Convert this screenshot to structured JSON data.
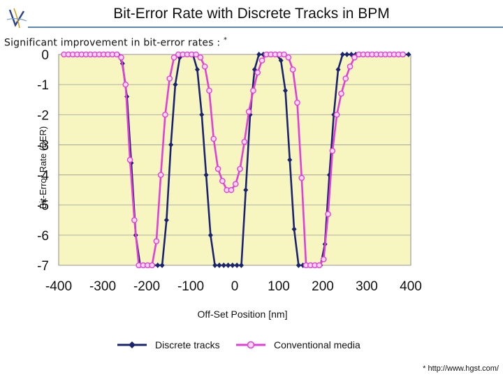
{
  "slide": {
    "title": "Bit-Error Rate with Discrete Tracks in BPM",
    "subtitle": "Significant improvement in bit-error rates :",
    "subtitle_marker": "*",
    "footnote": "* http://www.hgst.com/"
  },
  "colors": {
    "plot_bg": "#f7f5c0",
    "discrete": "#1a2370",
    "conventional": "#e23fd6",
    "conventional_marker_fill": "#ffd6f6",
    "grid": "#9a9a9a",
    "rule": "#5b86b8"
  },
  "chart_data": {
    "type": "line",
    "title": "",
    "xlabel": "Off-Set Position [nm]",
    "ylabel": "Bit-Error Rate (BER)",
    "xlim": [
      -400,
      400
    ],
    "ylim": [
      -7,
      0
    ],
    "xticks": [
      "-400",
      "-300",
      "-200",
      "-100",
      "0",
      "100",
      "200",
      "300",
      "400"
    ],
    "yticks": [
      "0",
      "-1",
      "-2",
      "-3",
      "-4",
      "-5",
      "-6",
      "-7"
    ],
    "grid": true,
    "legend_position": "bottom",
    "series": [
      {
        "name": "Discrete tracks",
        "marker": "diamond",
        "x": [
          -375,
          -365,
          -355,
          -345,
          -335,
          -325,
          -315,
          -305,
          -295,
          -285,
          -275,
          -265,
          -255,
          -245,
          -235,
          -225,
          -215,
          -205,
          -195,
          -185,
          -175,
          -165,
          -155,
          -145,
          -135,
          -125,
          -115,
          -105,
          -95,
          -85,
          -75,
          -65,
          -55,
          -45,
          -35,
          -25,
          -15,
          -5,
          5,
          15,
          25,
          35,
          45,
          55,
          65,
          75,
          85,
          95,
          105,
          115,
          125,
          135,
          145,
          155,
          165,
          175,
          185,
          195,
          205,
          215,
          225,
          235,
          245,
          255,
          265,
          275,
          285,
          295,
          305,
          315,
          325,
          335,
          345,
          355,
          365,
          375,
          385,
          395
        ],
        "y": [
          0,
          0,
          0,
          0,
          0,
          0,
          0,
          0,
          0,
          0,
          0,
          0,
          -0.3,
          -1.4,
          -3.6,
          -6.0,
          -7,
          -7,
          -7,
          -7,
          -7,
          -7,
          -5.5,
          -3.0,
          -1.0,
          -0.1,
          0,
          0,
          0,
          -0.5,
          -2.0,
          -4.0,
          -6.0,
          -7,
          -7,
          -7,
          -7,
          -7,
          -7,
          -7,
          -4.5,
          -2.0,
          -0.5,
          0,
          0,
          0,
          0,
          0,
          -0.2,
          -1.2,
          -3.5,
          -5.8,
          -7,
          -7,
          -7,
          -7,
          -7,
          -7,
          -6.3,
          -4.0,
          -2.0,
          -0.5,
          0,
          0,
          0,
          0,
          0,
          0,
          0,
          0,
          0,
          0,
          0,
          0,
          0,
          0,
          0,
          0
        ]
      },
      {
        "name": "Conventional media",
        "marker": "circle",
        "x": [
          -388,
          -378,
          -368,
          -358,
          -348,
          -338,
          -328,
          -318,
          -308,
          -298,
          -288,
          -278,
          -268,
          -258,
          -248,
          -238,
          -228,
          -218,
          -208,
          -198,
          -188,
          -178,
          -168,
          -158,
          -148,
          -138,
          -128,
          -118,
          -108,
          -98,
          -88,
          -78,
          -68,
          -58,
          -48,
          -38,
          -28,
          -18,
          -8,
          2,
          12,
          22,
          32,
          42,
          52,
          62,
          72,
          82,
          92,
          102,
          112,
          122,
          132,
          142,
          152,
          162,
          172,
          182,
          192,
          202,
          212,
          222,
          232,
          242,
          252,
          262,
          272,
          282,
          292,
          302,
          312,
          322,
          332,
          342,
          352,
          362,
          372,
          382
        ],
        "y": [
          0,
          0,
          0,
          0,
          0,
          0,
          0,
          0,
          0,
          0,
          0,
          0,
          0,
          -0.1,
          -1.0,
          -3.5,
          -5.5,
          -7,
          -7,
          -7,
          -7,
          -6.2,
          -4.0,
          -2.0,
          -0.8,
          -0.1,
          0,
          0,
          0,
          0,
          0,
          -0.1,
          -0.4,
          -1.2,
          -2.8,
          -3.8,
          -4.2,
          -4.5,
          -4.5,
          -4.3,
          -3.8,
          -2.9,
          -1.9,
          -1.2,
          -0.6,
          -0.2,
          0,
          0,
          0,
          0,
          0,
          -0.1,
          -0.5,
          -1.6,
          -4.1,
          -7,
          -7,
          -7,
          -7,
          -6.8,
          -5.3,
          -3.2,
          -2.0,
          -1.3,
          -0.8,
          -0.4,
          -0.1,
          0,
          0,
          0,
          0,
          0,
          0,
          0,
          0,
          0,
          0,
          0
        ]
      }
    ]
  }
}
